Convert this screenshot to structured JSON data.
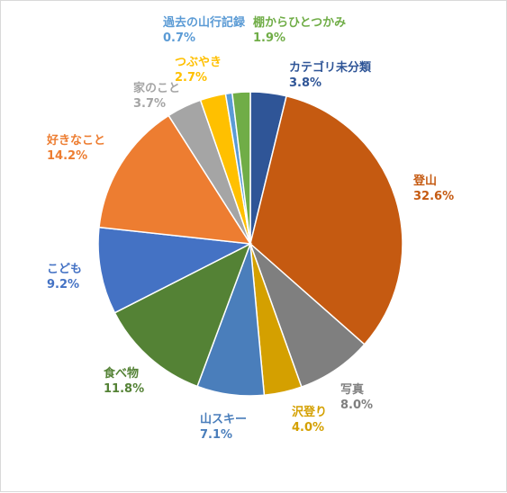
{
  "chart_data": {
    "type": "pie",
    "start_angle_deg": 0,
    "direction": "clockwise",
    "slices": [
      {
        "name": "カテゴリ未分類",
        "value": 3.8,
        "label": "3.8%",
        "color": "#2F5597"
      },
      {
        "name": "登山",
        "value": 32.6,
        "label": "32.6%",
        "color": "#C55A11"
      },
      {
        "name": "写真",
        "value": 8.0,
        "label": "8.0%",
        "color": "#7F7F7F"
      },
      {
        "name": "沢登り",
        "value": 4.0,
        "label": "4.0%",
        "color": "#D4A000"
      },
      {
        "name": "山スキー",
        "value": 7.1,
        "label": "7.1%",
        "color": "#4A7EBB"
      },
      {
        "name": "食べ物",
        "value": 11.8,
        "label": "11.8%",
        "color": "#548235"
      },
      {
        "name": "こども",
        "value": 9.2,
        "label": "9.2%",
        "color": "#4472C4"
      },
      {
        "name": "好きなこと",
        "value": 14.2,
        "label": "14.2%",
        "color": "#ED7D31"
      },
      {
        "name": "家のこと",
        "value": 3.7,
        "label": "3.7%",
        "color": "#A5A5A5"
      },
      {
        "name": "つぶやき",
        "value": 2.7,
        "label": "2.7%",
        "color": "#FFC000"
      },
      {
        "name": "過去の山行記録",
        "value": 0.7,
        "label": "0.7%",
        "color": "#5B9BD5"
      },
      {
        "name": "棚からひとつかみ",
        "value": 1.9,
        "label": "1.9%",
        "color": "#70AD47"
      }
    ]
  }
}
